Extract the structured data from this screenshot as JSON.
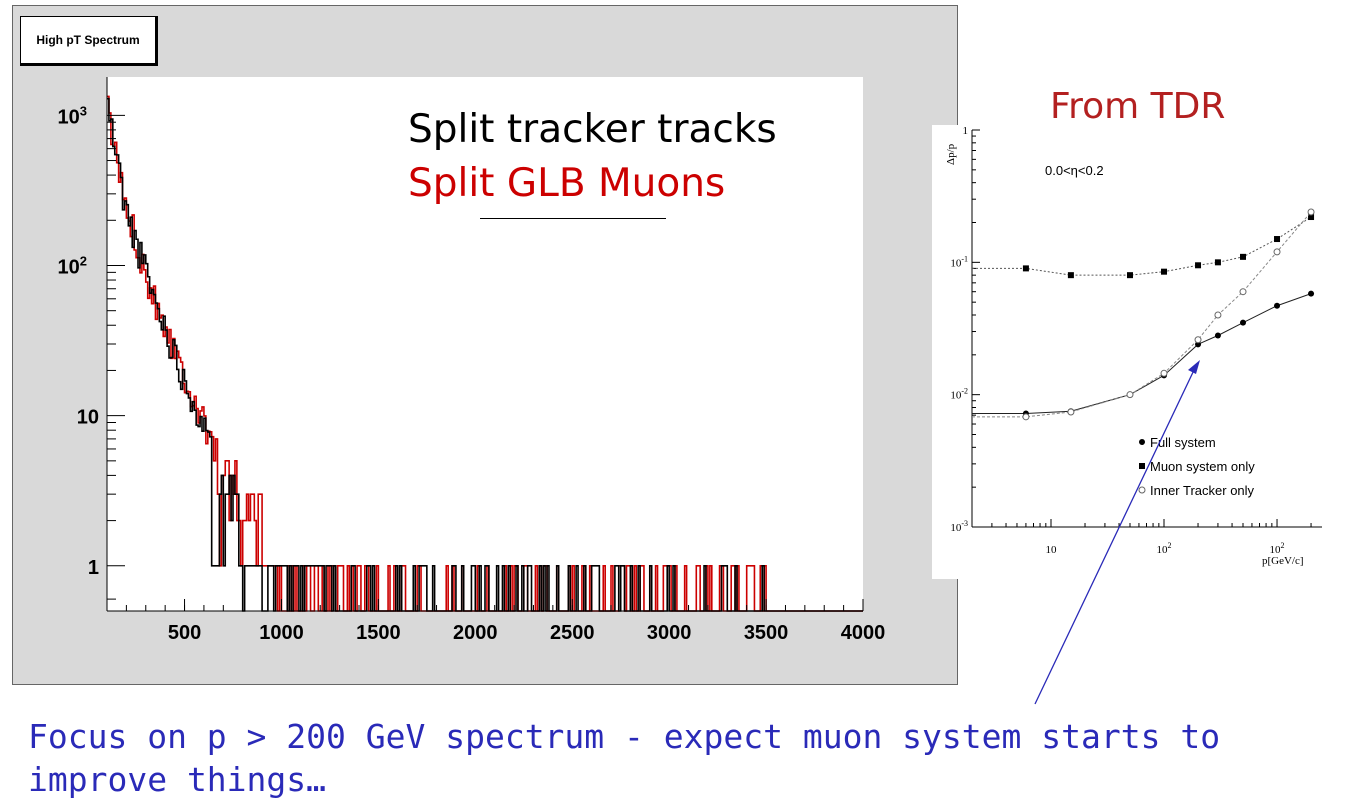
{
  "left_chart": {
    "title": "High pT Spectrum",
    "legend": [
      "Split tracker tracks",
      "Split GLB Muons"
    ],
    "x_ticks": [
      "500",
      "1000",
      "1500",
      "2000",
      "2500",
      "3000",
      "3500",
      "4000"
    ],
    "y_ticks": [
      "1",
      "10",
      "10^2",
      "10^3"
    ]
  },
  "right_chart": {
    "heading": "From TDR",
    "annotation": "0.0<η<0.2",
    "y_label": "Δp/p",
    "x_label": "p[GeV/c]",
    "legend": [
      "Full system",
      "Muon system only",
      "Inner Tracker only"
    ]
  },
  "caption": "Focus on p > 200 GeV spectrum - expect muon system starts to improve things…",
  "colors": {
    "tracker": "#000000",
    "glb": "#cc0000",
    "heading": "#b32020",
    "caption": "#2a2ab8",
    "arrow": "#2a2ab8"
  },
  "chart_data": [
    {
      "type": "line",
      "title": "High pT Spectrum",
      "xlim": [
        100,
        4000
      ],
      "ylim": [
        0.5,
        1800
      ],
      "y_scale": "log",
      "series": [
        {
          "name": "Split tracker tracks",
          "x": [
            100,
            150,
            200,
            250,
            300,
            350,
            400,
            450,
            500,
            550,
            600,
            650,
            700,
            800,
            900,
            1000,
            1100,
            1200,
            1500,
            2000,
            2500,
            3000,
            3500
          ],
          "y": [
            1200,
            500,
            220,
            140,
            90,
            55,
            38,
            25,
            17,
            12,
            8,
            5,
            3.5,
            2,
            1.5,
            1.6,
            1.3,
            1.2,
            1,
            1,
            1,
            1,
            1
          ]
        },
        {
          "name": "Split GLB Muons",
          "x": [
            100,
            150,
            200,
            250,
            300,
            350,
            400,
            450,
            500,
            550,
            600,
            650,
            700,
            800,
            900,
            1000,
            1100,
            1200,
            1500,
            2000,
            2500,
            3000,
            3500
          ],
          "y": [
            1100,
            480,
            230,
            150,
            85,
            58,
            40,
            27,
            18,
            13,
            8.5,
            6,
            4,
            2.5,
            2,
            1.7,
            1.5,
            1.3,
            1,
            1,
            1,
            1,
            1
          ]
        }
      ]
    },
    {
      "type": "line",
      "title": "From TDR",
      "xlabel": "p[GeV/c]",
      "ylabel": "Δp/p",
      "x_scale": "log",
      "y_scale": "log",
      "xlim": [
        2,
        2500
      ],
      "ylim": [
        0.001,
        1
      ],
      "series": [
        {
          "name": "Full system",
          "x": [
            6,
            15,
            50,
            100,
            200,
            300,
            500,
            1000,
            2000
          ],
          "y": [
            0.0072,
            0.0075,
            0.01,
            0.014,
            0.024,
            0.028,
            0.035,
            0.047,
            0.058
          ]
        },
        {
          "name": "Muon system only",
          "x": [
            6,
            15,
            50,
            100,
            200,
            300,
            500,
            1000,
            2000
          ],
          "y": [
            0.09,
            0.08,
            0.08,
            0.085,
            0.095,
            0.1,
            0.11,
            0.15,
            0.22
          ]
        },
        {
          "name": "Inner Tracker only",
          "x": [
            6,
            15,
            50,
            100,
            200,
            300,
            500,
            1000,
            2000
          ],
          "y": [
            0.0068,
            0.0074,
            0.01,
            0.0145,
            0.026,
            0.04,
            0.06,
            0.12,
            0.24
          ]
        }
      ]
    }
  ]
}
